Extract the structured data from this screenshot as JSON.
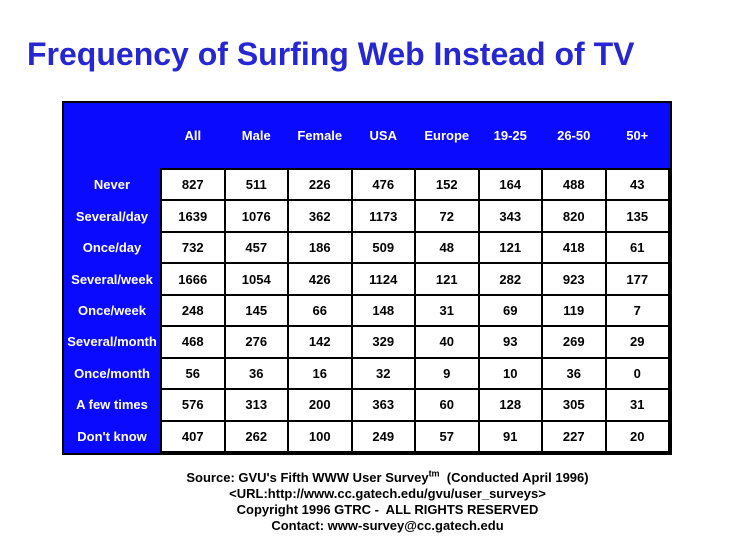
{
  "title": "Frequency of Surfing Web Instead of TV",
  "colors": {
    "title_blue": "#2626D2",
    "table_blue": "#0A0AFF",
    "header_text": "#FFFFFF",
    "cell_text": "#000000"
  },
  "chart_data": {
    "type": "table",
    "title": "Frequency of Surfing Web Instead of TV",
    "columns": [
      "All",
      "Male",
      "Female",
      "USA",
      "Europe",
      "19-25",
      "26-50",
      "50+"
    ],
    "row_labels": [
      "Never",
      "Several/day",
      "Once/day",
      "Several/week",
      "Once/week",
      "Several/month",
      "Once/month",
      "A few times",
      "Don't know"
    ],
    "rows": [
      [
        827,
        511,
        226,
        476,
        152,
        164,
        488,
        43
      ],
      [
        1639,
        1076,
        362,
        1173,
        72,
        343,
        820,
        135
      ],
      [
        732,
        457,
        186,
        509,
        48,
        121,
        418,
        61
      ],
      [
        1666,
        1054,
        426,
        1124,
        121,
        282,
        923,
        177
      ],
      [
        248,
        145,
        66,
        148,
        31,
        69,
        119,
        7
      ],
      [
        468,
        276,
        142,
        329,
        40,
        93,
        269,
        29
      ],
      [
        56,
        36,
        16,
        32,
        9,
        10,
        36,
        0
      ],
      [
        576,
        313,
        200,
        363,
        60,
        128,
        305,
        31
      ],
      [
        407,
        262,
        100,
        249,
        57,
        91,
        227,
        20
      ]
    ]
  },
  "footer": {
    "source_prefix": "Source: GVU's Fifth WWW User Survey",
    "source_sup": "tm",
    "source_suffix": "  (Conducted April 1996)",
    "url_line": "<URL:http://www.cc.gatech.edu/gvu/user_surveys>",
    "copyright_line": "Copyright 1996 GTRC -  ALL RIGHTS RESERVED",
    "contact_line": "Contact: www-survey@cc.gatech.edu"
  }
}
